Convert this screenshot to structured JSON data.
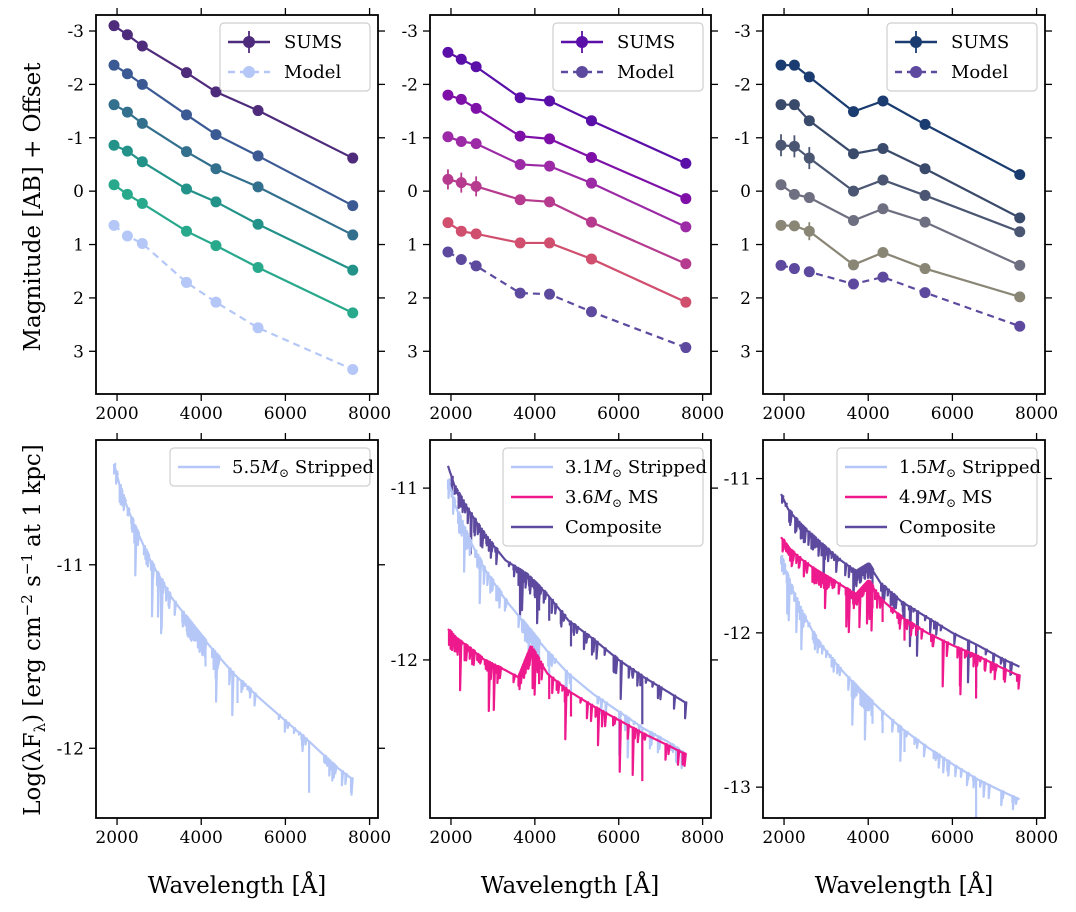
{
  "figure": {
    "ylabel_top": "Magnitude [AB] + Offset",
    "ylabel_bottom": "Log(λF",
    "ylabel_bottom_sub": "λ",
    "ylabel_bottom_rest": ") [erg cm",
    "ylabel_bottom_sup1": "−2",
    "ylabel_bottom_mid": " s",
    "ylabel_bottom_sup2": "−1",
    "ylabel_bottom_end": "at 1 kpc]",
    "xlabel": "Wavelength [Å]"
  },
  "chart_data": [
    {
      "id": "top-left",
      "type": "line",
      "invert_y": true,
      "xlim": [
        1500,
        8200
      ],
      "ylim": [
        3.8,
        -3.3
      ],
      "xticks": [
        2000,
        4000,
        6000,
        8000
      ],
      "xtick_labels": [
        "2000",
        "4000",
        "6000",
        "8000"
      ],
      "yticks": [
        -3,
        -2,
        -1,
        0,
        1,
        2,
        3
      ],
      "ytick_labels": [
        "-3",
        "-2",
        "-1",
        "0",
        "1",
        "2",
        "3"
      ],
      "x": [
        1928,
        2246,
        2600,
        3650,
        4350,
        5350,
        7600
      ],
      "series": [
        {
          "name": "SUMS",
          "color": "#4f2b7c",
          "dashed": false,
          "values": [
            -3.1,
            -2.93,
            -2.72,
            -2.22,
            -1.86,
            -1.51,
            -0.62
          ]
        },
        {
          "name": "SUMS",
          "color": "#3b5a94",
          "dashed": false,
          "values": [
            -2.36,
            -2.2,
            -2.0,
            -1.43,
            -1.06,
            -0.66,
            0.27
          ]
        },
        {
          "name": "SUMS",
          "color": "#33708e",
          "dashed": false,
          "values": [
            -1.62,
            -1.48,
            -1.27,
            -0.74,
            -0.42,
            -0.08,
            0.82
          ]
        },
        {
          "name": "SUMS",
          "color": "#23938a",
          "dashed": false,
          "values": [
            -0.86,
            -0.75,
            -0.55,
            -0.04,
            0.2,
            0.62,
            1.48
          ]
        },
        {
          "name": "SUMS",
          "color": "#29a98c",
          "dashed": false,
          "values": [
            -0.12,
            0.06,
            0.23,
            0.75,
            1.02,
            1.43,
            2.28
          ]
        },
        {
          "name": "Model",
          "color": "#b4c7f7",
          "dashed": true,
          "values": [
            0.64,
            0.84,
            0.98,
            1.71,
            2.08,
            2.56,
            3.34
          ]
        }
      ],
      "legend": [
        {
          "label": "SUMS",
          "color": "#4f2b7c",
          "dashed": false,
          "errorbar": true
        },
        {
          "label": "Model",
          "color": "#b4c7f7",
          "dashed": true,
          "errorbar": false
        }
      ],
      "legend_loc": "top-right"
    },
    {
      "id": "top-mid",
      "type": "line",
      "invert_y": true,
      "xlim": [
        1500,
        8200
      ],
      "ylim": [
        3.8,
        -3.3
      ],
      "xticks": [
        2000,
        4000,
        6000,
        8000
      ],
      "xtick_labels": [
        "2000",
        "4000",
        "6000",
        "8000"
      ],
      "yticks": [
        -3,
        -2,
        -1,
        0,
        1,
        2,
        3
      ],
      "ytick_labels": [
        "-3",
        "-2",
        "-1",
        "0",
        "1",
        "2",
        "3"
      ],
      "x": [
        1928,
        2246,
        2600,
        3650,
        4350,
        5350,
        7600
      ],
      "series": [
        {
          "name": "SUMS",
          "color": "#5a0fa8",
          "dashed": false,
          "values": [
            -2.6,
            -2.47,
            -2.33,
            -1.75,
            -1.69,
            -1.32,
            -0.52
          ]
        },
        {
          "name": "SUMS",
          "color": "#7e10a8",
          "dashed": false,
          "values": [
            -1.8,
            -1.72,
            -1.55,
            -1.03,
            -0.98,
            -0.63,
            0.14
          ]
        },
        {
          "name": "SUMS",
          "color": "#9c2aa6",
          "dashed": false,
          "values": [
            -1.02,
            -0.93,
            -0.89,
            -0.5,
            -0.47,
            -0.15,
            0.67
          ]
        },
        {
          "name": "SUMS",
          "color": "#b63a8e",
          "dashed": false,
          "values": [
            -0.22,
            -0.16,
            -0.09,
            0.16,
            0.2,
            0.58,
            1.36
          ]
        },
        {
          "name": "SUMS",
          "color": "#d14f6e",
          "dashed": false,
          "values": [
            0.59,
            0.75,
            0.8,
            0.97,
            0.97,
            1.27,
            2.08
          ]
        },
        {
          "name": "Model",
          "color": "#5d4a9f",
          "dashed": true,
          "values": [
            1.14,
            1.28,
            1.4,
            1.91,
            1.93,
            2.26,
            2.93
          ]
        }
      ],
      "legend": [
        {
          "label": "SUMS",
          "color": "#5a0fa8",
          "dashed": false,
          "errorbar": true
        },
        {
          "label": "Model",
          "color": "#5d4a9f",
          "dashed": true,
          "errorbar": false
        }
      ],
      "legend_loc": "top-right"
    },
    {
      "id": "top-right",
      "type": "line",
      "invert_y": true,
      "xlim": [
        1500,
        8200
      ],
      "ylim": [
        3.8,
        -3.3
      ],
      "xticks": [
        2000,
        4000,
        6000,
        8000
      ],
      "xtick_labels": [
        "2000",
        "4000",
        "6000",
        "8000"
      ],
      "yticks": [
        -3,
        -2,
        -1,
        0,
        1,
        2,
        3
      ],
      "ytick_labels": [
        "-3",
        "-2",
        "-1",
        "0",
        "1",
        "2",
        "3"
      ],
      "x": [
        1928,
        2246,
        2600,
        3650,
        4350,
        5350,
        7600
      ],
      "series": [
        {
          "name": "SUMS",
          "color": "#1a3c70",
          "dashed": false,
          "values": [
            -2.36,
            -2.36,
            -2.14,
            -1.49,
            -1.69,
            -1.25,
            -0.31
          ]
        },
        {
          "name": "SUMS",
          "color": "#3a4a6a",
          "dashed": false,
          "values": [
            -1.62,
            -1.62,
            -1.32,
            -0.7,
            -0.8,
            -0.42,
            0.5
          ]
        },
        {
          "name": "SUMS",
          "color": "#4a5672",
          "dashed": false,
          "values": [
            -0.86,
            -0.84,
            -0.62,
            0.0,
            -0.21,
            0.08,
            0.76
          ]
        },
        {
          "name": "SUMS",
          "color": "#6e6f80",
          "dashed": false,
          "values": [
            -0.12,
            0.06,
            0.12,
            0.55,
            0.33,
            0.58,
            1.39
          ]
        },
        {
          "name": "SUMS",
          "color": "#8a8676",
          "dashed": false,
          "values": [
            0.64,
            0.65,
            0.75,
            1.38,
            1.15,
            1.45,
            1.98
          ]
        },
        {
          "name": "Model",
          "color": "#5d4a9f",
          "dashed": true,
          "values": [
            1.39,
            1.45,
            1.51,
            1.74,
            1.61,
            1.9,
            2.53
          ]
        }
      ],
      "legend": [
        {
          "label": "SUMS",
          "color": "#1a3c70",
          "dashed": false,
          "errorbar": true
        },
        {
          "label": "Model",
          "color": "#5d4a9f",
          "dashed": true,
          "errorbar": false
        }
      ],
      "legend_loc": "top-right"
    },
    {
      "id": "bottom-left",
      "type": "line",
      "xlim": [
        1500,
        8200
      ],
      "ylim": [
        -12.38,
        -10.32
      ],
      "xticks": [
        2000,
        4000,
        6000,
        8000
      ],
      "xtick_labels": [
        "2000",
        "4000",
        "6000",
        "8000"
      ],
      "yticks": [
        -11,
        -12
      ],
      "ytick_labels": [
        "-11",
        "-12"
      ],
      "series": [
        {
          "name": "Stripped",
          "color": "#b4c7f7",
          "x": [
            1930,
            2100,
            2400,
            2800,
            3300,
            3800,
            4300,
            4800,
            5400,
            6000,
            6600,
            7200,
            7600
          ],
          "values": [
            -10.45,
            -10.6,
            -10.78,
            -10.98,
            -11.18,
            -11.33,
            -11.47,
            -11.6,
            -11.73,
            -11.85,
            -11.97,
            -12.1,
            -12.17
          ]
        }
      ],
      "legend": [
        {
          "label_pre": "5.5",
          "label_M": "M",
          "label_sub": "⊙",
          "label_post": " Stripped",
          "color": "#b4c7f7"
        }
      ],
      "legend_loc": "top-right"
    },
    {
      "id": "bottom-mid",
      "type": "line",
      "xlim": [
        1500,
        8200
      ],
      "ylim": [
        -12.92,
        -10.72
      ],
      "xticks": [
        2000,
        4000,
        6000,
        8000
      ],
      "xtick_labels": [
        "2000",
        "4000",
        "6000",
        "8000"
      ],
      "yticks": [
        -11,
        -12
      ],
      "ytick_labels": [
        "-11",
        "-12"
      ],
      "series": [
        {
          "name": "Composite",
          "color": "#5d4a9f",
          "x": [
            1930,
            2100,
            2400,
            2800,
            3300,
            3800,
            4300,
            4800,
            5400,
            6000,
            6600,
            7200,
            7600
          ],
          "values": [
            -10.87,
            -11.0,
            -11.12,
            -11.27,
            -11.42,
            -11.5,
            -11.62,
            -11.77,
            -11.88,
            -12.0,
            -12.1,
            -12.19,
            -12.25
          ]
        },
        {
          "name": "Stripped",
          "color": "#b4c7f7",
          "x": [
            1930,
            2100,
            2400,
            2800,
            3300,
            3800,
            4300,
            4800,
            5400,
            6000,
            6600,
            7200,
            7600
          ],
          "values": [
            -10.95,
            -11.1,
            -11.28,
            -11.47,
            -11.65,
            -11.8,
            -11.95,
            -12.08,
            -12.2,
            -12.3,
            -12.4,
            -12.48,
            -12.55
          ]
        },
        {
          "name": "MS",
          "color": "#ee1a8d",
          "x": [
            1930,
            2100,
            2400,
            2800,
            3300,
            3600,
            3900,
            4300,
            4800,
            5400,
            6000,
            6600,
            7200,
            7600
          ],
          "values": [
            -11.82,
            -11.87,
            -11.92,
            -12.0,
            -12.06,
            -12.1,
            -11.92,
            -12.08,
            -12.18,
            -12.27,
            -12.35,
            -12.43,
            -12.5,
            -12.55
          ]
        }
      ],
      "legend": [
        {
          "label_pre": "3.1",
          "label_M": "M",
          "label_sub": "⊙",
          "label_post": " Stripped",
          "color": "#b4c7f7"
        },
        {
          "label_pre": "3.6",
          "label_M": "M",
          "label_sub": "⊙",
          "label_post": " MS",
          "color": "#ee1a8d"
        },
        {
          "label_pre": "",
          "label_M": "",
          "label_sub": "",
          "label_post": "Composite",
          "color": "#5d4a9f"
        }
      ],
      "legend_loc": "top-right"
    },
    {
      "id": "bottom-right",
      "type": "line",
      "xlim": [
        1500,
        8200
      ],
      "ylim": [
        -13.2,
        -10.75
      ],
      "xticks": [
        2000,
        4000,
        6000,
        8000
      ],
      "xtick_labels": [
        "2000",
        "4000",
        "6000",
        "8000"
      ],
      "yticks": [
        -11,
        -12,
        -13
      ],
      "ytick_labels": [
        "-11",
        "-12",
        "-13"
      ],
      "series": [
        {
          "name": "Composite",
          "color": "#5d4a9f",
          "x": [
            1930,
            2100,
            2400,
            2800,
            3300,
            3700,
            4000,
            4300,
            4800,
            5400,
            6000,
            6600,
            7200,
            7600
          ],
          "values": [
            -11.1,
            -11.2,
            -11.3,
            -11.4,
            -11.52,
            -11.6,
            -11.55,
            -11.68,
            -11.8,
            -11.9,
            -12.0,
            -12.08,
            -12.17,
            -12.22
          ]
        },
        {
          "name": "MS",
          "color": "#ee1a8d",
          "x": [
            1930,
            2100,
            2400,
            2800,
            3300,
            3700,
            4000,
            4300,
            4800,
            5400,
            6000,
            6600,
            7200,
            7600
          ],
          "values": [
            -11.38,
            -11.45,
            -11.52,
            -11.6,
            -11.68,
            -11.75,
            -11.66,
            -11.78,
            -11.9,
            -12.0,
            -12.08,
            -12.15,
            -12.23,
            -12.28
          ]
        },
        {
          "name": "Stripped",
          "color": "#b4c7f7",
          "x": [
            1930,
            2100,
            2400,
            2800,
            3300,
            3800,
            4300,
            4800,
            5400,
            6000,
            6600,
            7200,
            7600
          ],
          "values": [
            -11.5,
            -11.65,
            -11.85,
            -12.05,
            -12.22,
            -12.37,
            -12.5,
            -12.62,
            -12.74,
            -12.85,
            -12.95,
            -13.03,
            -13.08
          ]
        }
      ],
      "legend": [
        {
          "label_pre": "1.5",
          "label_M": "M",
          "label_sub": "⊙",
          "label_post": " Stripped",
          "color": "#b4c7f7"
        },
        {
          "label_pre": "4.9",
          "label_M": "M",
          "label_sub": "⊙",
          "label_post": " MS",
          "color": "#ee1a8d"
        },
        {
          "label_pre": "",
          "label_M": "",
          "label_sub": "",
          "label_post": "Composite",
          "color": "#5d4a9f"
        }
      ],
      "legend_loc": "top-right"
    }
  ]
}
